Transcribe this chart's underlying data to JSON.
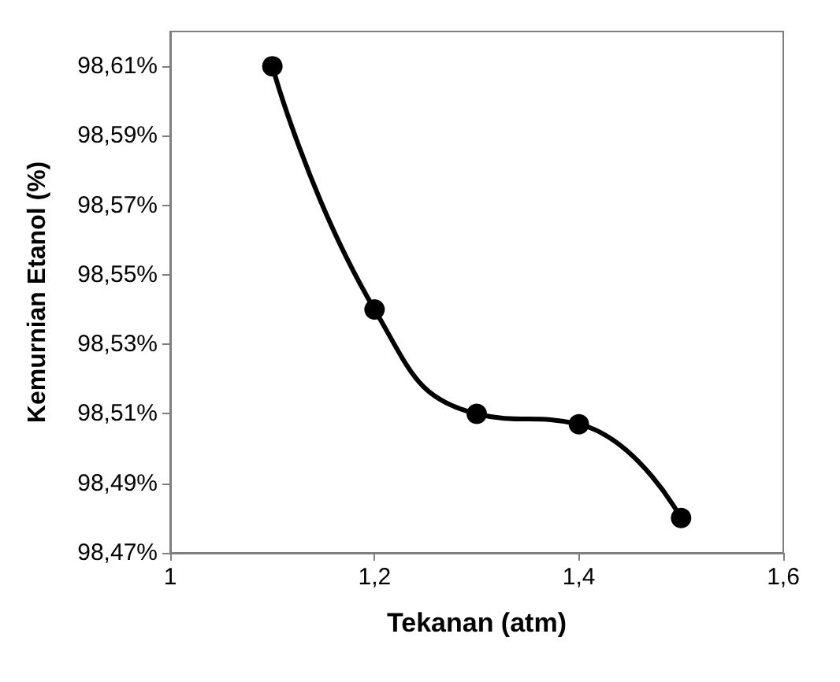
{
  "chart_data": {
    "type": "line",
    "xlabel": "Tekanan (atm)",
    "ylabel": "Kemurnian Etanol (%)",
    "x": [
      1.1,
      1.2,
      1.3,
      1.4,
      1.5
    ],
    "series": [
      {
        "color": "#000000",
        "values": [
          98.61,
          98.54,
          98.51,
          98.507,
          98.48
        ]
      }
    ],
    "xlim": [
      1,
      1.6
    ],
    "xticks": [
      1,
      {
        "value": 1.2,
        "label": "1,2"
      },
      {
        "value": 1.4,
        "label": "1,4"
      },
      {
        "value": 1.6,
        "label": "1,6"
      }
    ],
    "ylim": [
      98.47,
      98.62
    ],
    "yticks": [
      {
        "value": 98.47,
        "label": "98,47%"
      },
      {
        "value": 98.49,
        "label": "98,49%"
      },
      {
        "value": 98.51,
        "label": "98,51%"
      },
      {
        "value": 98.53,
        "label": "98,53%"
      },
      {
        "value": 98.55,
        "label": "98,55%"
      },
      {
        "value": 98.57,
        "label": "98,57%"
      },
      {
        "value": 98.59,
        "label": "98,59%"
      },
      {
        "value": 98.61,
        "label": "98,61%"
      }
    ],
    "marker": "circle",
    "line_style": "solid"
  }
}
